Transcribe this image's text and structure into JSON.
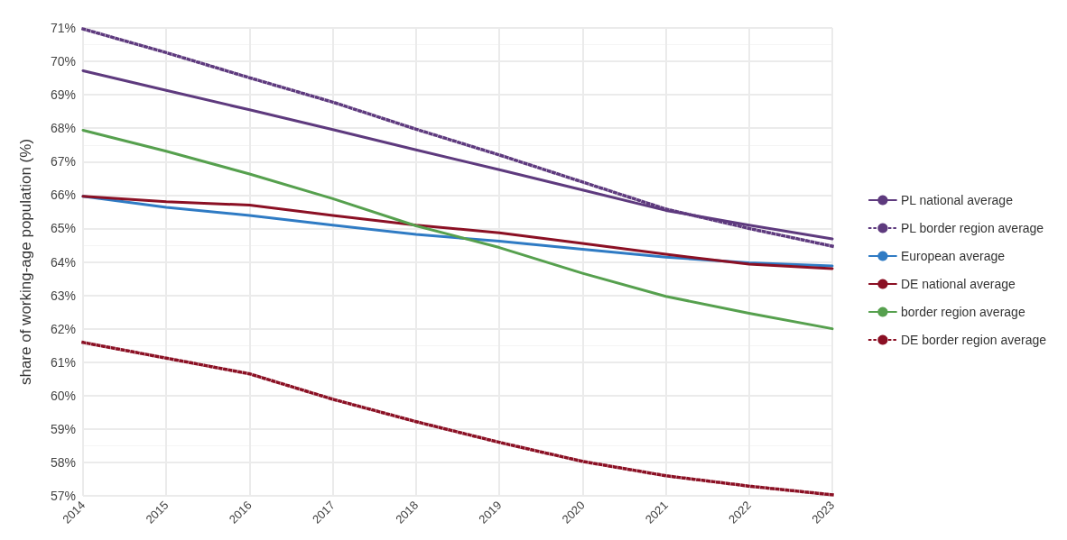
{
  "chart_data": {
    "type": "line",
    "ylabel": "share of working-age population (%)",
    "x": [
      2014,
      2015,
      2016,
      2017,
      2018,
      2019,
      2020,
      2021,
      2022,
      2023
    ],
    "series": [
      {
        "name": "PL national average",
        "color": "#5e3a7e",
        "line_style": "solid",
        "values": [
          69.72,
          69.13,
          68.55,
          67.96,
          67.35,
          66.76,
          66.15,
          65.54,
          65.1,
          64.69
        ]
      },
      {
        "name": "PL border region average",
        "color": "#5e3a7e",
        "line_style": "dotted",
        "values": [
          70.97,
          70.26,
          69.51,
          68.78,
          67.97,
          67.2,
          66.39,
          65.58,
          65.0,
          64.47
        ]
      },
      {
        "name": "European average",
        "color": "#2f7bc4",
        "line_style": "solid",
        "values": [
          65.96,
          65.63,
          65.39,
          65.1,
          64.82,
          64.62,
          64.38,
          64.14,
          63.97,
          63.88
        ]
      },
      {
        "name": "DE national average",
        "color": "#8b1024",
        "line_style": "solid",
        "values": [
          65.96,
          65.8,
          65.7,
          65.39,
          65.1,
          64.87,
          64.55,
          64.23,
          63.93,
          63.8
        ]
      },
      {
        "name": "border region average",
        "color": "#56a04e",
        "line_style": "solid",
        "values": [
          67.94,
          67.31,
          66.63,
          65.89,
          65.08,
          64.43,
          63.66,
          62.97,
          62.46,
          62.0
        ]
      },
      {
        "name": "DE border region average",
        "color": "#8b1024",
        "line_style": "dotted",
        "values": [
          61.59,
          61.12,
          60.65,
          59.89,
          59.22,
          58.6,
          58.03,
          57.6,
          57.29,
          57.03
        ]
      }
    ],
    "xlim": [
      2014,
      2023
    ],
    "xticks": [
      2014,
      2015,
      2016,
      2017,
      2018,
      2019,
      2020,
      2021,
      2022,
      2023
    ],
    "ylim": [
      57,
      71
    ],
    "yticks": [
      {
        "value": 57,
        "label": "57%"
      },
      {
        "value": 58,
        "label": "58%"
      },
      {
        "value": 59,
        "label": "59%"
      },
      {
        "value": 60,
        "label": "60%"
      },
      {
        "value": 61,
        "label": "61%"
      },
      {
        "value": 62,
        "label": "62%"
      },
      {
        "value": 63,
        "label": "63%"
      },
      {
        "value": 64,
        "label": "64%"
      },
      {
        "value": 65,
        "label": "65%"
      },
      {
        "value": 66,
        "label": "66%"
      },
      {
        "value": 67,
        "label": "67%"
      },
      {
        "value": 68,
        "label": "68%"
      },
      {
        "value": 69,
        "label": "69%"
      },
      {
        "value": 70,
        "label": "70%"
      },
      {
        "value": 71,
        "label": "71%"
      }
    ],
    "grid": true,
    "legend": "right",
    "marker": "none"
  }
}
